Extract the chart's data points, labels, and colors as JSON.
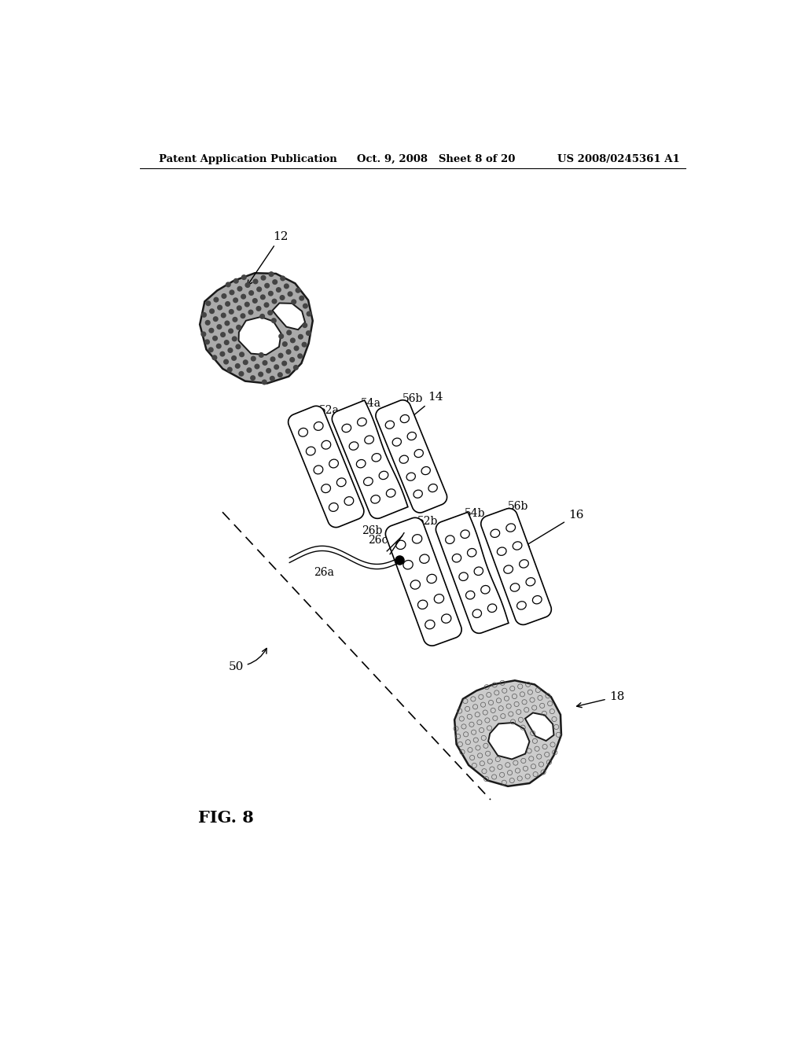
{
  "bg_color": "#ffffff",
  "header_left": "Patent Application Publication",
  "header_mid": "Oct. 9, 2008   Sheet 8 of 20",
  "header_right": "US 2008/0245361 A1",
  "fig_label": "FIG. 8"
}
